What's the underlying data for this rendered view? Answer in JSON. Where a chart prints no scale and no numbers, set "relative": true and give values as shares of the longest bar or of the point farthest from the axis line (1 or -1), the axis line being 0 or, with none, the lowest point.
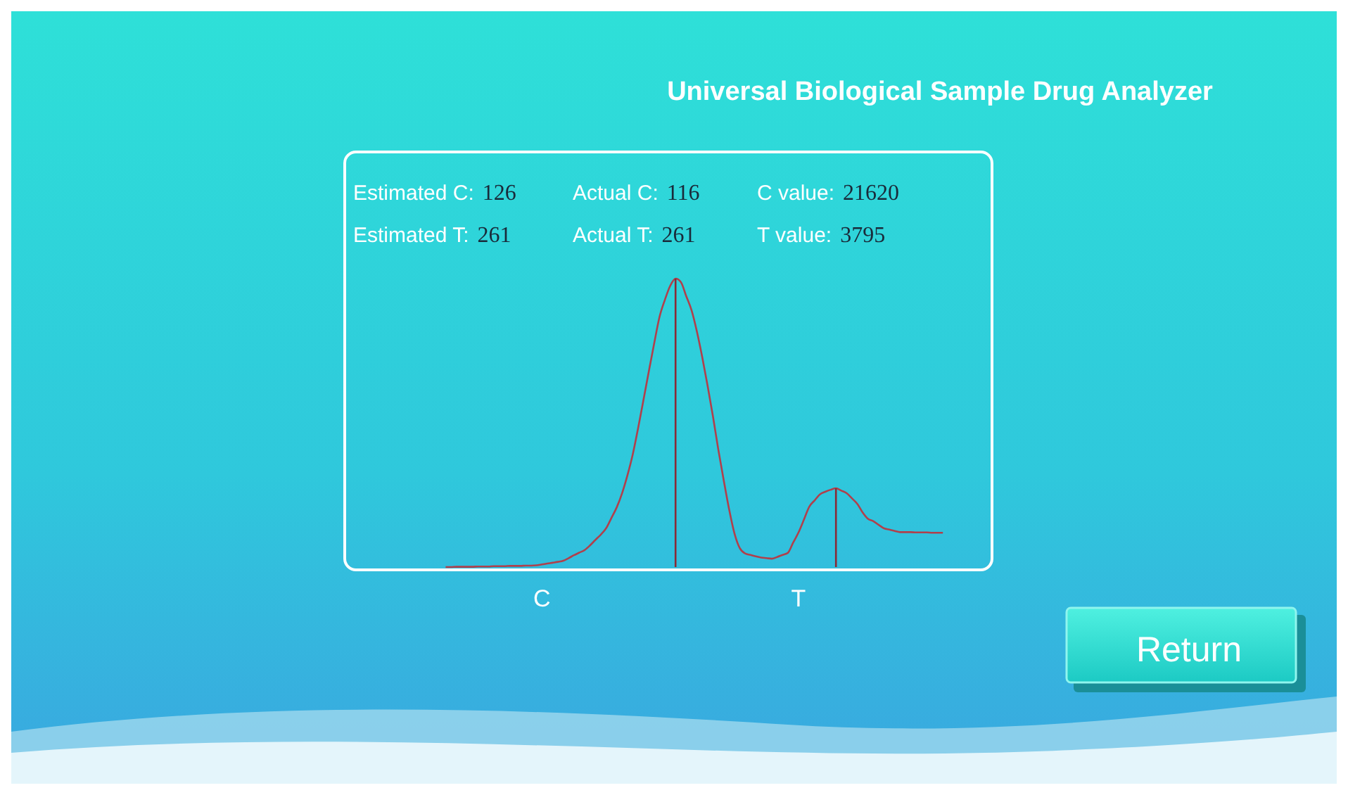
{
  "chart_data": {
    "type": "line",
    "title": "Universal Biological Sample Drug Analyzer",
    "relative": true,
    "categories": [
      null,
      null,
      null,
      null,
      null,
      null,
      null,
      null,
      null,
      null,
      null,
      null,
      null,
      null,
      null,
      null,
      null,
      null,
      "C",
      null,
      null,
      null,
      null,
      null,
      null,
      null,
      null,
      null,
      null,
      null,
      null,
      null,
      null,
      null,
      null,
      null,
      null,
      null,
      null,
      null,
      null,
      null,
      null,
      null,
      null,
      null,
      null,
      null,
      null,
      null,
      null,
      null,
      null,
      null,
      null,
      null,
      null,
      null,
      null,
      null,
      null,
      null,
      null,
      null,
      null,
      null,
      "T",
      null,
      null,
      null,
      null,
      null,
      null,
      null,
      null,
      null,
      null,
      null,
      null,
      null,
      null,
      null,
      null,
      null,
      null,
      null,
      null,
      null,
      null,
      null,
      null,
      null,
      null,
      null
    ],
    "series": [
      {
        "color": "#b0404c",
        "values": [
          0,
          0,
          0.001,
          0.001,
          0.001,
          0.001,
          0.002,
          0.002,
          0.002,
          0.003,
          0.003,
          0.003,
          0.004,
          0.004,
          0.004,
          0.005,
          0.005,
          0.006,
          0.009,
          0.012,
          0.015,
          0.018,
          0.022,
          0.031,
          0.041,
          0.05,
          0.059,
          0.075,
          0.094,
          0.112,
          0.134,
          0.17,
          0.207,
          0.256,
          0.318,
          0.391,
          0.482,
          0.579,
          0.678,
          0.775,
          0.867,
          0.926,
          0.975,
          1,
          0.988,
          0.939,
          0.89,
          0.816,
          0.727,
          0.628,
          0.522,
          0.407,
          0.302,
          0.202,
          0.118,
          0.066,
          0.047,
          0.042,
          0.037,
          0.033,
          0.031,
          0.029,
          0.035,
          0.042,
          0.049,
          0.085,
          0.12,
          0.164,
          0.209,
          0.231,
          0.252,
          0.261,
          0.268,
          0.273,
          0.265,
          0.256,
          0.238,
          0.219,
          0.189,
          0.167,
          0.159,
          0.146,
          0.134,
          0.13,
          0.125,
          0.121,
          0.121,
          0.121,
          0.12,
          0.12,
          0.12,
          0.119,
          0.119,
          0.119
        ]
      },
      {
        "type": "bar",
        "color": "#8a2a36",
        "values": [
          null,
          null,
          null,
          null,
          null,
          null,
          null,
          null,
          null,
          null,
          null,
          null,
          null,
          null,
          null,
          null,
          null,
          null,
          null,
          null,
          null,
          null,
          null,
          null,
          null,
          null,
          null,
          null,
          null,
          null,
          null,
          null,
          null,
          null,
          null,
          null,
          null,
          null,
          null,
          null,
          null,
          null,
          null,
          1,
          null,
          null,
          null,
          null,
          null,
          null,
          null,
          null,
          null,
          null,
          null,
          null,
          null,
          null,
          null,
          null,
          null,
          null,
          null,
          null,
          null,
          null,
          null,
          null,
          null,
          null,
          null,
          null,
          null,
          0.273,
          null,
          null,
          null,
          null,
          null,
          null,
          null,
          null,
          null,
          null,
          null,
          null,
          null,
          null,
          null,
          null,
          null,
          null,
          null,
          null
        ]
      }
    ],
    "annotations": [
      "Estimated C: 126",
      "Actual C: 116",
      "C value: 21620",
      "Estimated T: 261",
      "Actual T: 261",
      "T value: 3795",
      "Return"
    ],
    "marker": "none",
    "line_style": "solid"
  }
}
